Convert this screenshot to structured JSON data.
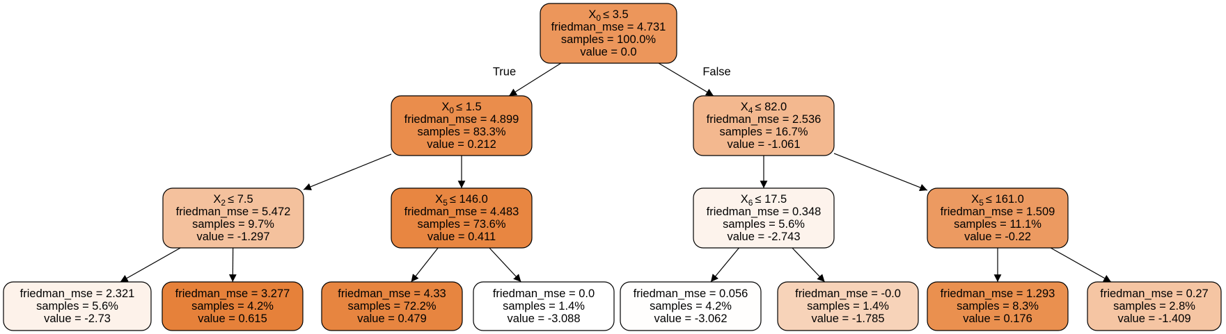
{
  "tree": {
    "edge_labels": {
      "true": "True",
      "false": "False"
    },
    "nodes": [
      {
        "id": "n0",
        "split": {
          "feature": "X",
          "index": "0",
          "op": "≤ 3.5"
        },
        "mse": "friedman_mse = 4.731",
        "samples": "samples = 100.0%",
        "value": "value = 0.0",
        "fill": "#ec965b"
      },
      {
        "id": "n1",
        "split": {
          "feature": "X",
          "index": "0",
          "op": "≤ 1.5"
        },
        "mse": "friedman_mse = 4.899",
        "samples": "samples = 83.3%",
        "value": "value = 0.212",
        "fill": "#ea8d4c"
      },
      {
        "id": "n2",
        "split": {
          "feature": "X",
          "index": "2",
          "op": "≤ 7.5"
        },
        "mse": "friedman_mse = 5.472",
        "samples": "samples = 9.7%",
        "value": "value = -1.297",
        "fill": "#f4c19d"
      },
      {
        "id": "n3",
        "mse": "friedman_mse = 2.321",
        "samples": "samples = 5.6%",
        "value": "value = -2.73",
        "fill": "#fdf2ea"
      },
      {
        "id": "n4",
        "mse": "friedman_mse = 3.277",
        "samples": "samples = 4.2%",
        "value": "value = 0.615",
        "fill": "#e6813a"
      },
      {
        "id": "n5",
        "split": {
          "feature": "X",
          "index": "5",
          "op": "≤ 146.0"
        },
        "mse": "friedman_mse = 4.483",
        "samples": "samples = 73.6%",
        "value": "value = 0.411",
        "fill": "#e88641"
      },
      {
        "id": "n6",
        "mse": "friedman_mse = 4.33",
        "samples": "samples = 72.2%",
        "value": "value = 0.479",
        "fill": "#e78540"
      },
      {
        "id": "n7",
        "mse": "friedman_mse = 0.0",
        "samples": "samples = 1.4%",
        "value": "value = -3.088",
        "fill": "#ffffff"
      },
      {
        "id": "n8",
        "split": {
          "feature": "X",
          "index": "4",
          "op": "≤ 82.0"
        },
        "mse": "friedman_mse = 2.536",
        "samples": "samples = 16.7%",
        "value": "value = -1.061",
        "fill": "#f3b88f"
      },
      {
        "id": "n9",
        "split": {
          "feature": "X",
          "index": "6",
          "op": "≤ 17.5"
        },
        "mse": "friedman_mse = 0.348",
        "samples": "samples = 5.6%",
        "value": "value = -2.743",
        "fill": "#fdf3ec"
      },
      {
        "id": "n10",
        "mse": "friedman_mse = 0.056",
        "samples": "samples = 4.2%",
        "value": "value = -3.062",
        "fill": "#fffefd"
      },
      {
        "id": "n11",
        "mse": "friedman_mse = -0.0",
        "samples": "samples = 1.4%",
        "value": "value = -1.785",
        "fill": "#f7d3b9"
      },
      {
        "id": "n12",
        "split": {
          "feature": "X",
          "index": "5",
          "op": "≤ 161.0"
        },
        "mse": "friedman_mse = 1.509",
        "samples": "samples = 11.1%",
        "value": "value = -0.22",
        "fill": "#ec9a61"
      },
      {
        "id": "n13",
        "mse": "friedman_mse = 1.293",
        "samples": "samples = 8.3%",
        "value": "value = 0.176",
        "fill": "#ea904f"
      },
      {
        "id": "n14",
        "mse": "friedman_mse = 0.27",
        "samples": "samples = 2.8%",
        "value": "value = -1.409",
        "fill": "#f5c5a3"
      }
    ],
    "edges": [
      {
        "from": "n0",
        "to": "n1",
        "label": "true"
      },
      {
        "from": "n0",
        "to": "n8",
        "label": "false"
      },
      {
        "from": "n1",
        "to": "n2"
      },
      {
        "from": "n1",
        "to": "n5"
      },
      {
        "from": "n2",
        "to": "n3"
      },
      {
        "from": "n2",
        "to": "n4"
      },
      {
        "from": "n5",
        "to": "n6"
      },
      {
        "from": "n5",
        "to": "n7"
      },
      {
        "from": "n8",
        "to": "n9"
      },
      {
        "from": "n8",
        "to": "n12"
      },
      {
        "from": "n9",
        "to": "n10"
      },
      {
        "from": "n9",
        "to": "n11"
      },
      {
        "from": "n12",
        "to": "n13"
      },
      {
        "from": "n12",
        "to": "n14"
      }
    ]
  }
}
